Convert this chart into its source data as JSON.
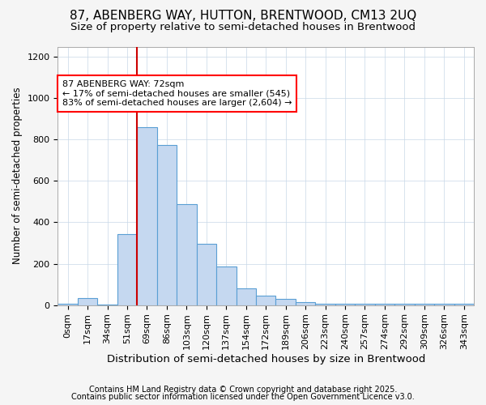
{
  "title": "87, ABENBERG WAY, HUTTON, BRENTWOOD, CM13 2UQ",
  "subtitle": "Size of property relative to semi-detached houses in Brentwood",
  "xlabel": "Distribution of semi-detached houses by size in Brentwood",
  "ylabel": "Number of semi-detached properties",
  "categories": [
    "0sqm",
    "17sqm",
    "34sqm",
    "51sqm",
    "69sqm",
    "86sqm",
    "103sqm",
    "120sqm",
    "137sqm",
    "154sqm",
    "172sqm",
    "189sqm",
    "206sqm",
    "223sqm",
    "240sqm",
    "257sqm",
    "274sqm",
    "292sqm",
    "309sqm",
    "326sqm",
    "343sqm"
  ],
  "values": [
    5,
    35,
    2,
    345,
    860,
    775,
    490,
    295,
    185,
    80,
    45,
    30,
    15,
    5,
    5,
    5,
    5,
    5,
    5,
    5,
    5
  ],
  "bar_color": "#c5d8f0",
  "bar_edgecolor": "#5a9fd4",
  "annotation_box_text": "87 ABENBERG WAY: 72sqm\n← 17% of semi-detached houses are smaller (545)\n83% of semi-detached houses are larger (2,604) →",
  "ylim": [
    0,
    1250
  ],
  "footnote1": "Contains HM Land Registry data © Crown copyright and database right 2025.",
  "footnote2": "Contains public sector information licensed under the Open Government Licence v3.0.",
  "background_color": "#f5f5f5",
  "plot_background_color": "#ffffff",
  "title_fontsize": 11,
  "subtitle_fontsize": 9.5,
  "red_line_color": "#cc0000",
  "annotation_fontsize": 8,
  "footnote_fontsize": 7,
  "ylabel_fontsize": 8.5,
  "xlabel_fontsize": 9.5,
  "tick_fontsize": 8
}
